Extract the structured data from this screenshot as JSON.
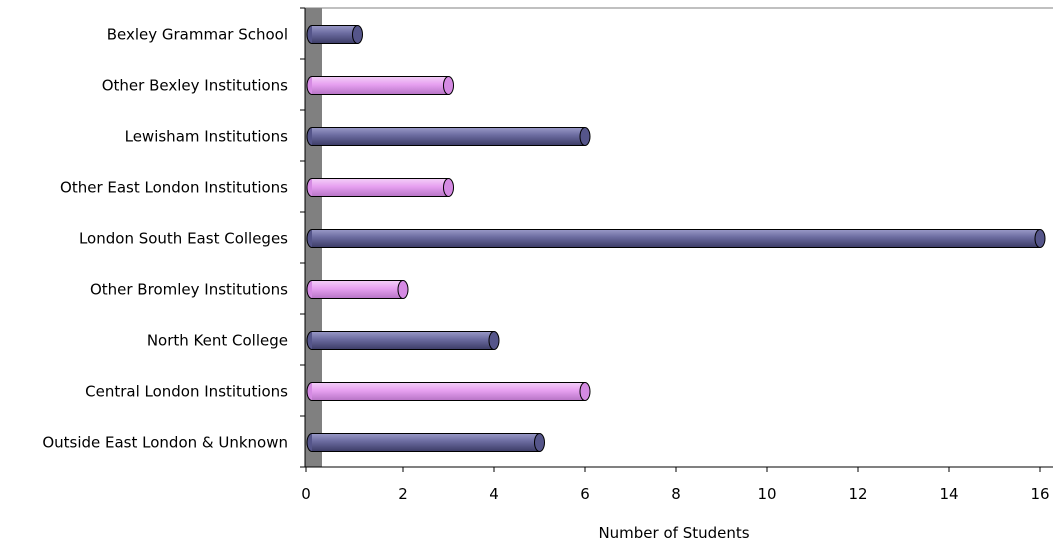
{
  "chart_data": {
    "type": "bar",
    "orientation": "horizontal",
    "categories": [
      "Bexley Grammar School",
      "Other Bexley Institutions",
      "Lewisham Institutions",
      "Other East London Institutions",
      "London South East Colleges",
      "Other Bromley Institutions",
      "North Kent College",
      "Central London Institutions",
      "Outside East London & Unknown"
    ],
    "values": [
      1,
      3,
      6,
      3,
      16,
      2,
      4,
      6,
      5
    ],
    "bar_colors": [
      "#6a6a9e",
      "#e6a0f0",
      "#6a6a9e",
      "#e6a0f0",
      "#6a6a9e",
      "#e6a0f0",
      "#6a6a9e",
      "#e6a0f0",
      "#6a6a9e"
    ],
    "title": "",
    "xlabel": "Number of Students",
    "ylabel": "",
    "xlim": [
      0,
      16
    ],
    "xticks": [
      0,
      2,
      4,
      6,
      8,
      10,
      12,
      14,
      16
    ],
    "grid": false,
    "legend": "none",
    "wall_color": "#808080"
  }
}
